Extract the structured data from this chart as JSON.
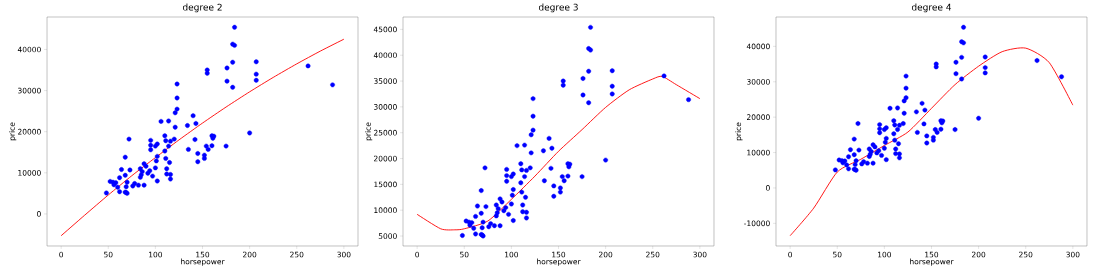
{
  "chart_data": [
    {
      "type": "scatter",
      "title": "degree 2",
      "xlabel": "horsepower",
      "ylabel": "price",
      "xlim": [
        -15,
        315
      ],
      "ylim": [
        -7800,
        47900
      ],
      "xticks": [
        0,
        50,
        100,
        150,
        200,
        250,
        300
      ],
      "yticks": [
        0,
        10000,
        20000,
        30000,
        40000
      ],
      "series": [
        {
          "type": "scatter",
          "marker": "circle",
          "color": "#0000ff",
          "x": [
            48,
            52,
            55,
            56,
            58,
            60,
            62,
            62,
            64,
            68,
            68,
            68,
            69,
            69,
            70,
            70,
            72,
            73,
            76,
            78,
            82,
            84,
            84,
            85,
            86,
            88,
            88,
            90,
            92,
            94,
            95,
            95,
            95,
            97,
            100,
            100,
            101,
            102,
            102,
            102,
            106,
            110,
            110,
            111,
            111,
            112,
            112,
            114,
            114,
            115,
            116,
            116,
            116,
            120,
            121,
            121,
            123,
            123,
            123,
            134,
            135,
            140,
            142,
            143,
            145,
            145,
            152,
            152,
            154,
            155,
            155,
            156,
            160,
            160,
            161,
            162,
            175,
            176,
            176,
            182,
            182,
            182,
            184,
            184,
            200,
            207,
            207,
            207,
            262,
            288
          ],
          "values": [
            5100,
            7900,
            7700,
            7100,
            7600,
            6500,
            5400,
            8800,
            10800,
            5300,
            13800,
            9400,
            5200,
            6600,
            5000,
            7700,
            18200,
            10700,
            6800,
            7400,
            7000,
            8900,
            11000,
            9500,
            10300,
            7000,
            12200,
            11600,
            9900,
            10500,
            17900,
            16700,
            15600,
            9200,
            16500,
            11200,
            12900,
            17000,
            8000,
            14000,
            22500,
            19000,
            15300,
            17800,
            13500,
            11000,
            9700,
            22600,
            16500,
            12500,
            17700,
            8500,
            9600,
            18200,
            24600,
            21100,
            31600,
            28200,
            25500,
            21500,
            15700,
            23900,
            18100,
            22000,
            14700,
            12700,
            13500,
            14300,
            16500,
            35000,
            34200,
            15700,
            16600,
            19000,
            18400,
            18900,
            16500,
            35500,
            32300,
            30800,
            41300,
            36900,
            45400,
            41000,
            19700,
            37000,
            34000,
            32500,
            36000,
            31400
          ]
        },
        {
          "type": "line",
          "marker": "none",
          "color": "#ff0000",
          "x": [
            0,
            25,
            50,
            75,
            100,
            125,
            150,
            175,
            200,
            225,
            250,
            275,
            300
          ],
          "values": [
            -5300,
            -300,
            4600,
            9300,
            13700,
            18000,
            22100,
            26000,
            29700,
            33200,
            36500,
            39600,
            42500
          ]
        }
      ]
    },
    {
      "type": "scatter",
      "title": "degree 3",
      "xlabel": "horsepower",
      "ylabel": "price",
      "xlim": [
        -15,
        315
      ],
      "ylim": [
        3070,
        47400
      ],
      "xticks": [
        0,
        50,
        100,
        150,
        200,
        250,
        300
      ],
      "yticks": [
        5000,
        10000,
        15000,
        20000,
        25000,
        30000,
        35000,
        40000,
        45000
      ],
      "series": [
        {
          "type": "scatter",
          "marker": "circle",
          "color": "#0000ff",
          "x": [
            48,
            52,
            55,
            56,
            58,
            60,
            62,
            62,
            64,
            68,
            68,
            68,
            69,
            69,
            70,
            70,
            72,
            73,
            76,
            78,
            82,
            84,
            84,
            85,
            86,
            88,
            88,
            90,
            92,
            94,
            95,
            95,
            95,
            97,
            100,
            100,
            101,
            102,
            102,
            102,
            106,
            110,
            110,
            111,
            111,
            112,
            112,
            114,
            114,
            115,
            116,
            116,
            116,
            120,
            121,
            121,
            123,
            123,
            123,
            134,
            135,
            140,
            142,
            143,
            145,
            145,
            152,
            152,
            154,
            155,
            155,
            156,
            160,
            160,
            161,
            162,
            175,
            176,
            176,
            182,
            182,
            182,
            184,
            184,
            200,
            207,
            207,
            207,
            262,
            288
          ],
          "values": [
            5100,
            7900,
            7700,
            7100,
            7600,
            6500,
            5400,
            8800,
            10800,
            5300,
            13800,
            9400,
            5200,
            6600,
            5000,
            7700,
            18200,
            10700,
            6800,
            7400,
            7000,
            8900,
            11000,
            9500,
            10300,
            7000,
            12200,
            11600,
            9900,
            10500,
            17900,
            16700,
            15600,
            9200,
            16500,
            11200,
            12900,
            17000,
            8000,
            14000,
            22500,
            19000,
            15300,
            17800,
            13500,
            11000,
            9700,
            22600,
            16500,
            12500,
            17700,
            8500,
            9600,
            18200,
            24600,
            21100,
            31600,
            28200,
            25500,
            21500,
            15700,
            23900,
            18100,
            22000,
            14700,
            12700,
            13500,
            14300,
            16500,
            35000,
            34200,
            15700,
            16600,
            19000,
            18400,
            18900,
            16500,
            35500,
            32300,
            30800,
            41300,
            36900,
            45400,
            41000,
            19700,
            37000,
            34000,
            32500,
            36000,
            31400
          ]
        },
        {
          "type": "line",
          "marker": "none",
          "color": "#ff0000",
          "x": [
            0,
            25,
            40,
            50,
            75,
            100,
            125,
            150,
            175,
            200,
            225,
            250,
            260,
            275,
            300
          ],
          "values": [
            9200,
            6400,
            6200,
            6400,
            7900,
            12100,
            16600,
            21400,
            25600,
            29900,
            33300,
            35400,
            35900,
            34300,
            31600
          ]
        }
      ]
    },
    {
      "type": "scatter",
      "title": "degree 4",
      "xlabel": "horsepower",
      "ylabel": "price",
      "xlim": [
        -15,
        315
      ],
      "ylim": [
        -16400,
        48300
      ],
      "xticks": [
        0,
        50,
        100,
        150,
        200,
        250,
        300
      ],
      "yticks": [
        -10000,
        0,
        10000,
        20000,
        30000,
        40000
      ],
      "series": [
        {
          "type": "scatter",
          "marker": "circle",
          "color": "#0000ff",
          "x": [
            48,
            52,
            55,
            56,
            58,
            60,
            62,
            62,
            64,
            68,
            68,
            68,
            69,
            69,
            70,
            70,
            72,
            73,
            76,
            78,
            82,
            84,
            84,
            85,
            86,
            88,
            88,
            90,
            92,
            94,
            95,
            95,
            95,
            97,
            100,
            100,
            101,
            102,
            102,
            102,
            106,
            110,
            110,
            111,
            111,
            112,
            112,
            114,
            114,
            115,
            116,
            116,
            116,
            120,
            121,
            121,
            123,
            123,
            123,
            134,
            135,
            140,
            142,
            143,
            145,
            145,
            152,
            152,
            154,
            155,
            155,
            156,
            160,
            160,
            161,
            162,
            175,
            176,
            176,
            182,
            182,
            182,
            184,
            184,
            200,
            207,
            207,
            207,
            262,
            288
          ],
          "values": [
            5100,
            7900,
            7700,
            7100,
            7600,
            6500,
            5400,
            8800,
            10800,
            5300,
            13800,
            9400,
            5200,
            6600,
            5000,
            7700,
            18200,
            10700,
            6800,
            7400,
            7000,
            8900,
            11000,
            9500,
            10300,
            7000,
            12200,
            11600,
            9900,
            10500,
            17900,
            16700,
            15600,
            9200,
            16500,
            11200,
            12900,
            17000,
            8000,
            14000,
            22500,
            19000,
            15300,
            17800,
            13500,
            11000,
            9700,
            22600,
            16500,
            12500,
            17700,
            8500,
            9600,
            18200,
            24600,
            21100,
            31600,
            28200,
            25500,
            21500,
            15700,
            23900,
            18100,
            22000,
            14700,
            12700,
            13500,
            14300,
            16500,
            35000,
            34200,
            15700,
            16600,
            19000,
            18400,
            18900,
            16500,
            35500,
            32300,
            30800,
            41300,
            36900,
            45400,
            41000,
            19700,
            37000,
            34000,
            32500,
            36000,
            31400
          ]
        },
        {
          "type": "line",
          "marker": "none",
          "color": "#ff0000",
          "x": [
            0,
            25,
            50,
            75,
            100,
            125,
            150,
            175,
            200,
            225,
            250,
            275,
            300
          ],
          "values": [
            -13500,
            -5700,
            4500,
            8100,
            12000,
            15800,
            22500,
            29200,
            34400,
            38500,
            39500,
            35400,
            23400
          ]
        }
      ]
    }
  ]
}
